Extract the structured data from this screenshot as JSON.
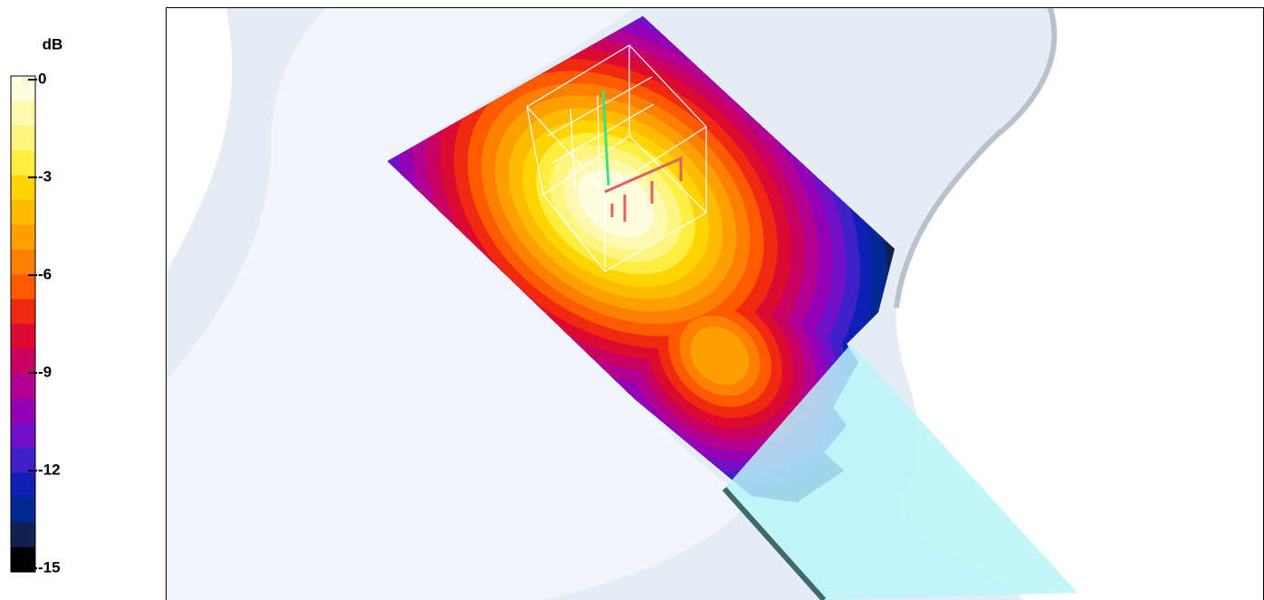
{
  "colorbar": {
    "title": "dB",
    "ticks": [
      0,
      -3,
      -6,
      -9,
      -12,
      -15
    ],
    "colors": [
      "#fffde0",
      "#fff9b0",
      "#fff580",
      "#ffee40",
      "#ffd400",
      "#ffbb00",
      "#ff9f00",
      "#ff8000",
      "#ff5a00",
      "#f02a10",
      "#dc0a30",
      "#c80060",
      "#b40090",
      "#9600b4",
      "#7010c8",
      "#4020c8",
      "#1020b4",
      "#002890",
      "#102050",
      "#000000"
    ]
  }
}
